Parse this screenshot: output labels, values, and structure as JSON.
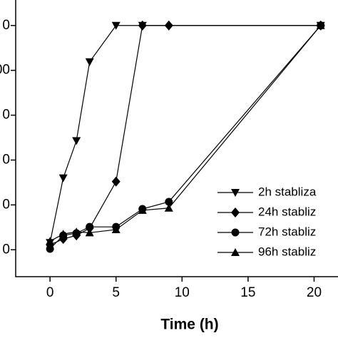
{
  "chart_data": {
    "type": "line",
    "x_label": "Time (h)",
    "xlim": [
      -2.6,
      23
    ],
    "xticks": [
      0,
      5,
      10,
      15,
      20
    ],
    "ylim": [
      -0.6,
      5.6
    ],
    "yticks": [
      {
        "value": 0,
        "label": "0"
      },
      {
        "value": 1,
        "label": "0"
      },
      {
        "value": 2,
        "label": "0"
      },
      {
        "value": 3,
        "label": "0"
      },
      {
        "value": 4,
        "label": "00"
      },
      {
        "value": 5,
        "label": "0"
      }
    ],
    "series": [
      {
        "name": "2h  stabliza",
        "color": "#000000",
        "marker": "down-triangle",
        "x": [
          0,
          1,
          2,
          3,
          5,
          7,
          20.5
        ],
        "values": [
          0.16,
          1.6,
          2.43,
          4.19,
          5,
          5,
          5
        ]
      },
      {
        "name": "24h stabliz",
        "color": "#000000",
        "marker": "diamond",
        "x": [
          0,
          1,
          2,
          3,
          5,
          7,
          9,
          20.5
        ],
        "values": [
          0.11,
          0.24,
          0.32,
          0.48,
          1.52,
          5,
          5,
          5
        ]
      },
      {
        "name": "72h stabliz",
        "color": "#000000",
        "marker": "circle",
        "x": [
          0,
          1,
          2,
          3,
          5,
          7,
          9,
          20.5
        ],
        "values": [
          0.02,
          0.32,
          0.37,
          0.51,
          0.51,
          0.91,
          1.07,
          5
        ]
      },
      {
        "name": "96h stabliz",
        "color": "#000000",
        "marker": "up-triangle",
        "x": [
          0,
          1,
          2,
          3,
          5,
          7,
          9,
          20.5
        ],
        "values": [
          0.19,
          0.35,
          0.4,
          0.38,
          0.45,
          0.88,
          0.93,
          5
        ]
      }
    ]
  }
}
